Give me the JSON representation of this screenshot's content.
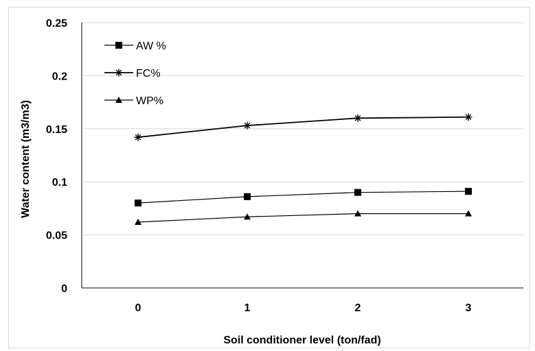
{
  "chart_data": {
    "type": "line",
    "categories": [
      "0",
      "1",
      "2",
      "3"
    ],
    "series": [
      {
        "name": "AW %",
        "marker": "square",
        "values": [
          0.08,
          0.086,
          0.09,
          0.091
        ]
      },
      {
        "name": "FC%",
        "marker": "asterisk",
        "values": [
          0.142,
          0.153,
          0.16,
          0.161
        ]
      },
      {
        "name": "WP%",
        "marker": "triangle",
        "values": [
          0.062,
          0.067,
          0.07,
          0.07
        ]
      }
    ],
    "xlabel": "Soil conditioner level  (ton/fad)",
    "ylabel": "Water content  (m3/m3)",
    "ylim": [
      0,
      0.25
    ],
    "yticks": [
      "0",
      "0.05",
      "0.1",
      "0.15",
      "0.2",
      "0.25"
    ],
    "ytick_values": [
      0,
      0.05,
      0.1,
      0.15,
      0.2,
      0.25
    ],
    "grid": true,
    "legend_position": "top-left",
    "colors": {
      "line": "#000000",
      "grid": "#d9d9d9",
      "axis": "#000000"
    }
  }
}
